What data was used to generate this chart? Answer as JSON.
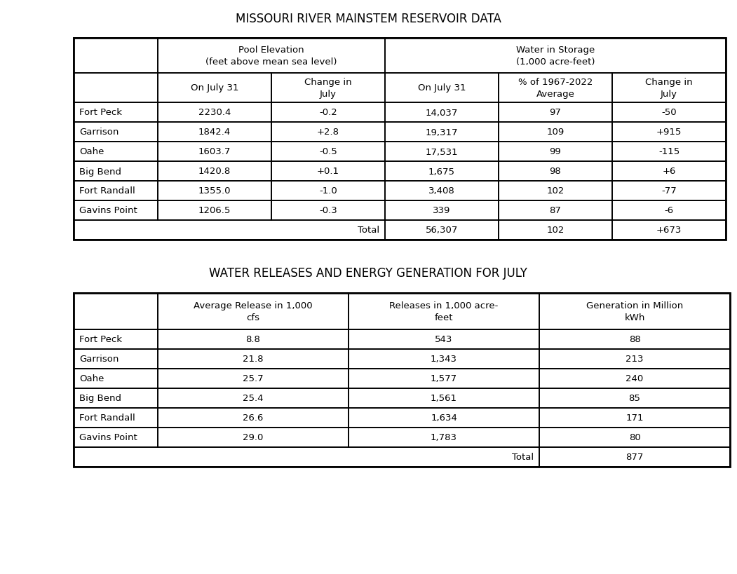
{
  "title1": "MISSOURI RIVER MAINSTEM RESERVOIR DATA",
  "title2": "WATER RELEASES AND ENERGY GENERATION FOR JULY",
  "table1": {
    "col_headers_row1_pe": "Pool Elevation\n(feet above mean sea level)",
    "col_headers_row1_ws": "Water in Storage\n(1,000 acre-feet)",
    "col_headers_row2": [
      "On July 31",
      "Change in\nJuly",
      "On July 31",
      "% of 1967-2022\nAverage",
      "Change in\nJuly"
    ],
    "row_labels": [
      "Fort Peck",
      "Garrison",
      "Oahe",
      "Big Bend",
      "Fort Randall",
      "Gavins Point"
    ],
    "data": [
      [
        "2230.4",
        "-0.2",
        "14,037",
        "97",
        "-50"
      ],
      [
        "1842.4",
        "+2.8",
        "19,317",
        "109",
        "+915"
      ],
      [
        "1603.7",
        "-0.5",
        "17,531",
        "99",
        "-115"
      ],
      [
        "1420.8",
        "+0.1",
        "1,675",
        "98",
        "+6"
      ],
      [
        "1355.0",
        "-1.0",
        "3,408",
        "102",
        "-77"
      ],
      [
        "1206.5",
        "-0.3",
        "339",
        "87",
        "-6"
      ]
    ],
    "total_vals": [
      "56,307",
      "102",
      "+673"
    ]
  },
  "table2": {
    "col_headers": [
      "Average Release in 1,000\ncfs",
      "Releases in 1,000 acre-\nfeet",
      "Generation in Million\nkWh"
    ],
    "row_labels": [
      "Fort Peck",
      "Garrison",
      "Oahe",
      "Big Bend",
      "Fort Randall",
      "Gavins Point"
    ],
    "data": [
      [
        "8.8",
        "543",
        "88"
      ],
      [
        "21.8",
        "1,343",
        "213"
      ],
      [
        "25.7",
        "1,577",
        "240"
      ],
      [
        "25.4",
        "1,561",
        "85"
      ],
      [
        "26.6",
        "1,634",
        "171"
      ],
      [
        "29.0",
        "1,783",
        "80"
      ]
    ],
    "total_val": "877"
  },
  "title_fontsize": 12,
  "header_fontsize": 9.5,
  "data_fontsize": 9.5,
  "bg_color": "#ffffff",
  "line_color": "#000000"
}
